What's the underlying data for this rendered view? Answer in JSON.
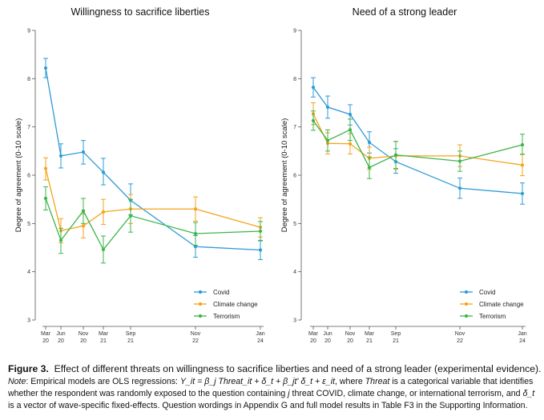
{
  "chart_data": [
    {
      "type": "line",
      "title": "Willingness to sacrifice liberties",
      "xlabel": "",
      "ylabel": "Degree of agreement (0-10 scale)",
      "ylim": [
        3,
        9
      ],
      "yticks": [
        "3",
        "4",
        "5",
        "6",
        "7",
        "8",
        "9"
      ],
      "categories": [
        "Mar 20",
        "Jun 20",
        "Nov 20",
        "Mar 21",
        "Sep 21",
        "Nov 22",
        "Jan 24"
      ],
      "series": [
        {
          "name": "Covid",
          "color": "#2e9bd6",
          "points": [
            {
              "x": "Mar 20",
              "y": 8.22,
              "lo": 8.02,
              "hi": 8.42
            },
            {
              "x": "Jun 20",
              "y": 6.4,
              "lo": 6.15,
              "hi": 6.65
            },
            {
              "x": "Nov 20",
              "y": 6.48,
              "lo": 6.23,
              "hi": 6.72
            },
            {
              "x": "Mar 21",
              "y": 6.06,
              "lo": 5.8,
              "hi": 6.35
            },
            {
              "x": "Sep 21",
              "y": 5.48,
              "lo": 5.18,
              "hi": 5.82
            },
            {
              "x": "Nov 22",
              "y": 4.52,
              "lo": 4.3,
              "hi": 4.75
            },
            {
              "x": "Jan 24",
              "y": 4.45,
              "lo": 4.25,
              "hi": 4.65
            }
          ]
        },
        {
          "name": "Climate change",
          "color": "#f5a31a",
          "points": [
            {
              "x": "Mar 20",
              "y": 6.14,
              "lo": 5.9,
              "hi": 6.36
            },
            {
              "x": "Jun 20",
              "y": 4.85,
              "lo": 4.6,
              "hi": 5.1
            },
            {
              "x": "Nov 20",
              "y": 4.95,
              "lo": 4.7,
              "hi": 5.2
            },
            {
              "x": "Mar 21",
              "y": 5.24,
              "lo": 4.98,
              "hi": 5.5
            },
            {
              "x": "Sep 21",
              "y": 5.3,
              "lo": 5.0,
              "hi": 5.6
            },
            {
              "x": "Nov 22",
              "y": 5.3,
              "lo": 5.05,
              "hi": 5.55
            },
            {
              "x": "Jan 24",
              "y": 4.92,
              "lo": 4.72,
              "hi": 5.12
            }
          ]
        },
        {
          "name": "Terrorism",
          "color": "#3cb54a",
          "points": [
            {
              "x": "Mar 20",
              "y": 5.52,
              "lo": 5.28,
              "hi": 5.76
            },
            {
              "x": "Jun 20",
              "y": 4.65,
              "lo": 4.38,
              "hi": 4.9
            },
            {
              "x": "Nov 20",
              "y": 5.26,
              "lo": 5.0,
              "hi": 5.52
            },
            {
              "x": "Mar 21",
              "y": 4.46,
              "lo": 4.18,
              "hi": 4.74
            },
            {
              "x": "Sep 21",
              "y": 5.16,
              "lo": 4.82,
              "hi": 5.5
            },
            {
              "x": "Nov 22",
              "y": 4.79,
              "lo": 4.55,
              "hi": 5.02
            },
            {
              "x": "Jan 24",
              "y": 4.84,
              "lo": 4.64,
              "hi": 5.04
            }
          ]
        }
      ],
      "legend": "bottom-right"
    },
    {
      "type": "line",
      "title": "Need of a strong leader",
      "xlabel": "",
      "ylabel": "Degree of agreement (0-10 scale)",
      "ylim": [
        3,
        9
      ],
      "yticks": [
        "3",
        "4",
        "5",
        "6",
        "7",
        "8",
        "9"
      ],
      "categories": [
        "Mar 20",
        "Jun 20",
        "Nov 20",
        "Mar 21",
        "Sep 21",
        "Nov 22",
        "Jan 24"
      ],
      "series": [
        {
          "name": "Covid",
          "color": "#2e9bd6",
          "points": [
            {
              "x": "Mar 20",
              "y": 7.82,
              "lo": 7.62,
              "hi": 8.02
            },
            {
              "x": "Jun 20",
              "y": 7.41,
              "lo": 7.18,
              "hi": 7.64
            },
            {
              "x": "Nov 20",
              "y": 7.26,
              "lo": 7.04,
              "hi": 7.46
            },
            {
              "x": "Mar 21",
              "y": 6.68,
              "lo": 6.46,
              "hi": 6.9
            },
            {
              "x": "Sep 21",
              "y": 6.28,
              "lo": 6.04,
              "hi": 6.55
            },
            {
              "x": "Nov 22",
              "y": 5.73,
              "lo": 5.52,
              "hi": 5.94
            },
            {
              "x": "Jan 24",
              "y": 5.62,
              "lo": 5.4,
              "hi": 5.84
            }
          ]
        },
        {
          "name": "Climate change",
          "color": "#f5a31a",
          "points": [
            {
              "x": "Mar 20",
              "y": 7.27,
              "lo": 7.05,
              "hi": 7.5
            },
            {
              "x": "Jun 20",
              "y": 6.66,
              "lo": 6.44,
              "hi": 6.88
            },
            {
              "x": "Nov 20",
              "y": 6.65,
              "lo": 6.44,
              "hi": 6.86
            },
            {
              "x": "Mar 21",
              "y": 6.35,
              "lo": 6.12,
              "hi": 6.58
            },
            {
              "x": "Sep 21",
              "y": 6.4,
              "lo": 6.12,
              "hi": 6.7
            },
            {
              "x": "Nov 22",
              "y": 6.4,
              "lo": 6.18,
              "hi": 6.63
            },
            {
              "x": "Jan 24",
              "y": 6.21,
              "lo": 5.99,
              "hi": 6.44
            }
          ]
        },
        {
          "name": "Terrorism",
          "color": "#3cb54a",
          "points": [
            {
              "x": "Mar 20",
              "y": 7.13,
              "lo": 6.93,
              "hi": 7.33
            },
            {
              "x": "Jun 20",
              "y": 6.72,
              "lo": 6.5,
              "hi": 6.94
            },
            {
              "x": "Nov 20",
              "y": 6.94,
              "lo": 6.72,
              "hi": 7.16
            },
            {
              "x": "Mar 21",
              "y": 6.16,
              "lo": 5.93,
              "hi": 6.38
            },
            {
              "x": "Sep 21",
              "y": 6.42,
              "lo": 6.14,
              "hi": 6.7
            },
            {
              "x": "Nov 22",
              "y": 6.29,
              "lo": 6.08,
              "hi": 6.5
            },
            {
              "x": "Jan 24",
              "y": 6.63,
              "lo": 6.43,
              "hi": 6.85
            }
          ]
        }
      ],
      "legend": "bottom-right"
    }
  ],
  "caption": {
    "label": "Figure 3.",
    "title": "Effect of different threats on willingness to sacrifice liberties and need of a strong leader (experimental evidence).",
    "note_label": "Note",
    "note_text_a": ": Empirical models are OLS regressions: ",
    "note_formula": "Y_it = β_j Threat_it + δ_t + β_jt' δ_t + ε_it",
    "note_text_b": ", where ",
    "note_threat_word": "Threat",
    "note_text_c": " is a categorical variable that identifies whether the respondent was randomly exposed to the question containing ",
    "note_j": "j",
    "note_text_d": " threat COVID, climate change, or international terrorism, and ",
    "note_delta": "δ_t",
    "note_text_e": " is a vector of wave-specific fixed-effects. Question wordings in Appendix G and full model results in Table F3 in the Supporting Information."
  }
}
